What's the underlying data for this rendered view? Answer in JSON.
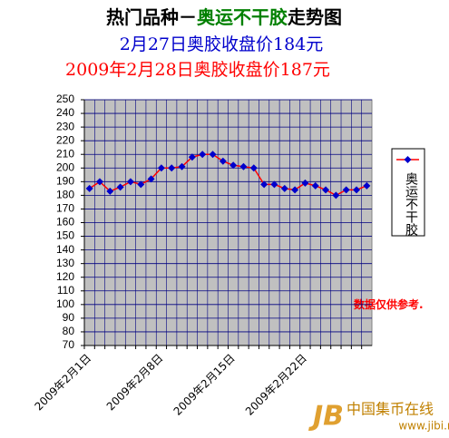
{
  "chart_data": {
    "type": "line",
    "title_parts": [
      {
        "text": "热门品种－",
        "color": "#000000"
      },
      {
        "text": "奥运不干胶",
        "color": "#008000"
      },
      {
        "text": "走势图",
        "color": "#000000"
      }
    ],
    "subtitles": [
      {
        "text": "2月27日奥胶收盘价184元",
        "color": "#0000cc"
      },
      {
        "text": "2009年2月28日奥胶收盘价187元",
        "color": "#ff0000"
      }
    ],
    "categories": [
      "2009年2月1日",
      null,
      null,
      null,
      null,
      null,
      null,
      "2009年2月8日",
      null,
      null,
      null,
      null,
      null,
      null,
      "2009年2月15日",
      null,
      null,
      null,
      null,
      null,
      null,
      "2009年2月22日",
      null,
      null,
      null,
      null,
      null,
      null
    ],
    "series": [
      {
        "name": "奥运不干胶",
        "color": "#ff0000",
        "marker_color": "#0000cc",
        "values": [
          185,
          190,
          183,
          186,
          190,
          188,
          192,
          200,
          200,
          201,
          208,
          210,
          210,
          205,
          202,
          201,
          200,
          188,
          188,
          185,
          184,
          189,
          187,
          184,
          180,
          184,
          184,
          187
        ]
      }
    ],
    "ylim": [
      70,
      250
    ],
    "yticks": [
      70,
      80,
      90,
      100,
      110,
      120,
      130,
      140,
      150,
      160,
      170,
      180,
      190,
      200,
      210,
      220,
      230,
      240,
      250
    ],
    "grid": true,
    "legend": "right",
    "annotation": "数据仅供参考.",
    "watermark": {
      "name": "中国集币在线",
      "url": "www.jibi.net"
    }
  }
}
